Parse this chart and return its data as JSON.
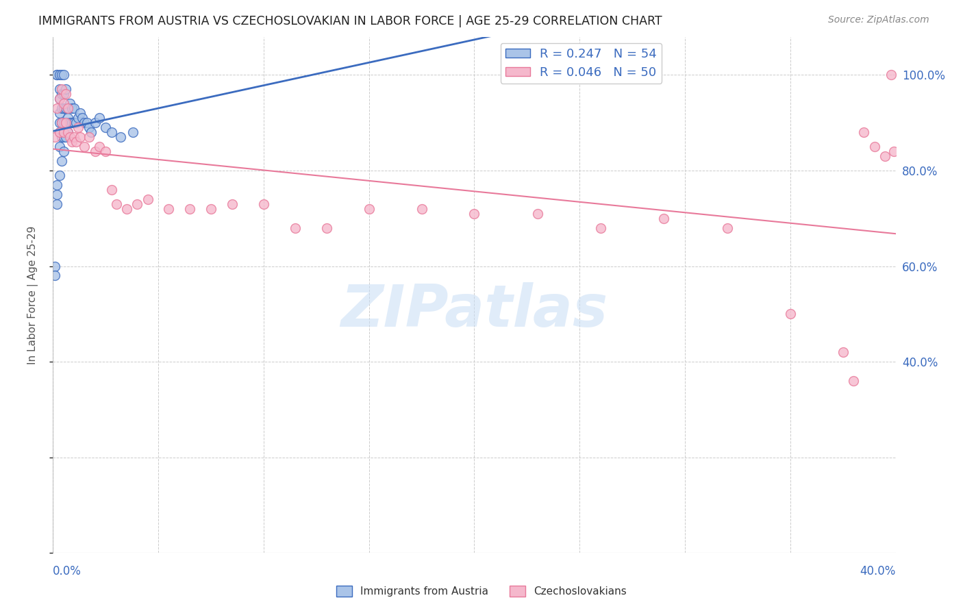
{
  "title": "IMMIGRANTS FROM AUSTRIA VS CZECHOSLOVAKIAN IN LABOR FORCE | AGE 25-29 CORRELATION CHART",
  "source": "Source: ZipAtlas.com",
  "ylabel": "In Labor Force | Age 25-29",
  "legend_austria": "R = 0.247   N = 54",
  "legend_czech": "R = 0.046   N = 50",
  "austria_color": "#aac4e8",
  "austria_line_color": "#3b6bbf",
  "czech_color": "#f5b8cc",
  "czech_line_color": "#e8799a",
  "background_color": "#ffffff",
  "watermark": "ZIPatlas",
  "xlim": [
    0.0,
    0.4
  ],
  "ylim": [
    0.0,
    1.08
  ],
  "austria_points_x": [
    0.001,
    0.001,
    0.002,
    0.002,
    0.002,
    0.002,
    0.002,
    0.003,
    0.003,
    0.003,
    0.003,
    0.003,
    0.003,
    0.003,
    0.003,
    0.004,
    0.004,
    0.004,
    0.004,
    0.004,
    0.004,
    0.005,
    0.005,
    0.005,
    0.005,
    0.005,
    0.005,
    0.006,
    0.006,
    0.006,
    0.006,
    0.007,
    0.007,
    0.007,
    0.008,
    0.008,
    0.009,
    0.009,
    0.01,
    0.01,
    0.011,
    0.012,
    0.013,
    0.014,
    0.015,
    0.016,
    0.017,
    0.018,
    0.02,
    0.022,
    0.025,
    0.028,
    0.032,
    0.038
  ],
  "austria_points_y": [
    0.6,
    0.58,
    0.73,
    0.75,
    0.77,
    1.0,
    1.0,
    0.79,
    0.85,
    0.88,
    0.9,
    0.92,
    0.95,
    0.97,
    1.0,
    0.82,
    0.87,
    0.9,
    0.93,
    0.96,
    1.0,
    0.84,
    0.87,
    0.9,
    0.93,
    0.96,
    1.0,
    0.87,
    0.9,
    0.93,
    0.97,
    0.88,
    0.91,
    0.93,
    0.9,
    0.94,
    0.9,
    0.93,
    0.9,
    0.93,
    0.9,
    0.91,
    0.92,
    0.91,
    0.9,
    0.9,
    0.89,
    0.88,
    0.9,
    0.91,
    0.89,
    0.88,
    0.87,
    0.88
  ],
  "czech_points_x": [
    0.001,
    0.002,
    0.003,
    0.003,
    0.004,
    0.004,
    0.005,
    0.005,
    0.006,
    0.006,
    0.007,
    0.007,
    0.008,
    0.009,
    0.01,
    0.011,
    0.012,
    0.013,
    0.015,
    0.017,
    0.02,
    0.022,
    0.025,
    0.028,
    0.03,
    0.035,
    0.04,
    0.045,
    0.055,
    0.065,
    0.075,
    0.085,
    0.1,
    0.115,
    0.13,
    0.15,
    0.175,
    0.2,
    0.23,
    0.26,
    0.29,
    0.32,
    0.35,
    0.375,
    0.38,
    0.385,
    0.39,
    0.395,
    0.398,
    0.399
  ],
  "czech_points_y": [
    0.87,
    0.93,
    0.88,
    0.95,
    0.9,
    0.97,
    0.88,
    0.94,
    0.9,
    0.96,
    0.88,
    0.93,
    0.87,
    0.86,
    0.87,
    0.86,
    0.89,
    0.87,
    0.85,
    0.87,
    0.84,
    0.85,
    0.84,
    0.76,
    0.73,
    0.72,
    0.73,
    0.74,
    0.72,
    0.72,
    0.72,
    0.73,
    0.73,
    0.68,
    0.68,
    0.72,
    0.72,
    0.71,
    0.71,
    0.68,
    0.7,
    0.68,
    0.5,
    0.42,
    0.36,
    0.88,
    0.85,
    0.83,
    1.0,
    0.84
  ]
}
